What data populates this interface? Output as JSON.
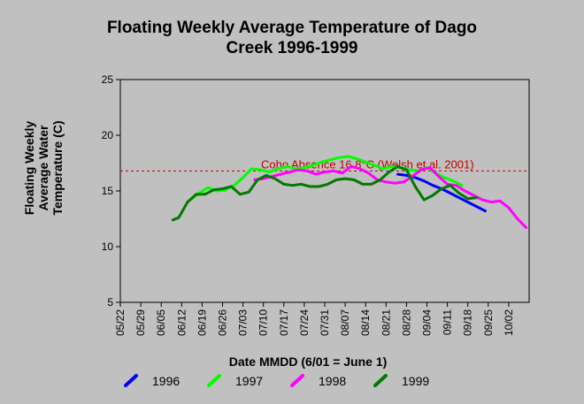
{
  "chart_data": {
    "type": "line",
    "title_lines": [
      "Floating Weekly Average Temperature of Dago",
      "Creek 1996-1999"
    ],
    "xlabel": "Date MMDD (6/01 = June 1)",
    "ylabel_lines": [
      "Floating Weekly",
      "Average Water",
      "Temperature (C)"
    ],
    "ylim": [
      5,
      25
    ],
    "yticks": [
      "5",
      "10",
      "15",
      "20",
      "25"
    ],
    "xlim": [
      "05/22",
      "10/09"
    ],
    "xtick_labels": [
      "05/22",
      "05/29",
      "06/05",
      "06/12",
      "06/19",
      "06/26",
      "07/03",
      "07/10",
      "07/17",
      "07/24",
      "07/31",
      "08/07",
      "08/14",
      "08/21",
      "08/28",
      "09/04",
      "09/11",
      "09/18",
      "09/25",
      "10/02"
    ],
    "grid": false,
    "legend_position": "bottom",
    "reference_line": {
      "value": 16.8,
      "label": "Coho Absence 16.8°C (Welsh et al. 2001)",
      "color": "#c00000"
    },
    "series": [
      {
        "name": "1996",
        "color": "#0000ff",
        "x": [
          "08/25",
          "08/28",
          "08/31",
          "09/03",
          "09/06",
          "09/09",
          "09/12",
          "09/15",
          "09/18",
          "09/21",
          "09/24"
        ],
        "values": [
          16.5,
          16.4,
          16.2,
          15.9,
          15.5,
          15.2,
          14.8,
          14.4,
          14.0,
          13.6,
          13.2
        ]
      },
      {
        "name": "1997",
        "color": "#00ff00",
        "x": [
          "06/15",
          "06/18",
          "06/21",
          "06/24",
          "06/27",
          "06/30",
          "07/03",
          "07/06",
          "07/09",
          "07/12",
          "07/15",
          "07/18",
          "07/21",
          "07/24",
          "07/27",
          "07/30",
          "08/02",
          "08/05",
          "08/08",
          "08/11",
          "08/14",
          "08/17",
          "08/20",
          "08/23",
          "08/26",
          "08/29",
          "09/01",
          "09/04",
          "09/07",
          "09/10",
          "09/13",
          "09/16"
        ],
        "values": [
          14.2,
          14.8,
          15.3,
          15.0,
          15.1,
          15.5,
          16.2,
          17.0,
          16.9,
          16.7,
          17.0,
          17.2,
          17.0,
          17.1,
          17.3,
          17.6,
          17.8,
          18.0,
          18.1,
          17.9,
          17.6,
          17.3,
          17.0,
          17.2,
          17.1,
          16.9,
          16.8,
          17.1,
          16.6,
          16.2,
          15.9,
          15.5
        ]
      },
      {
        "name": "1998",
        "color": "#ff00ff",
        "x": [
          "07/07",
          "07/10",
          "07/13",
          "07/16",
          "07/19",
          "07/22",
          "07/25",
          "07/28",
          "07/31",
          "08/03",
          "08/06",
          "08/09",
          "08/12",
          "08/15",
          "08/18",
          "08/21",
          "08/24",
          "08/27",
          "08/30",
          "09/02",
          "09/05",
          "09/08",
          "09/11",
          "09/14",
          "09/17",
          "09/20",
          "09/23",
          "09/26",
          "09/29",
          "10/02",
          "10/05",
          "10/08"
        ],
        "values": [
          16.0,
          16.1,
          16.3,
          16.5,
          16.7,
          16.9,
          16.8,
          16.5,
          16.7,
          16.8,
          16.6,
          17.2,
          17.0,
          16.6,
          16.0,
          15.8,
          15.7,
          15.8,
          16.3,
          16.9,
          17.1,
          16.3,
          15.6,
          15.5,
          15.0,
          14.6,
          14.2,
          14.0,
          14.1,
          13.5,
          12.5,
          11.7
        ]
      },
      {
        "name": "1999",
        "color": "#007a00",
        "x": [
          "06/09",
          "06/11",
          "06/14",
          "06/17",
          "06/20",
          "06/23",
          "06/26",
          "06/29",
          "07/02",
          "07/05",
          "07/08",
          "07/11",
          "07/14",
          "07/17",
          "07/20",
          "07/23",
          "07/26",
          "07/29",
          "08/01",
          "08/04",
          "08/07",
          "08/10",
          "08/13",
          "08/16",
          "08/19",
          "08/22",
          "08/25",
          "08/28",
          "08/31",
          "09/03",
          "09/06",
          "09/09",
          "09/12",
          "09/15",
          "09/18",
          "09/21"
        ],
        "values": [
          12.4,
          12.6,
          14.0,
          14.7,
          14.7,
          15.1,
          15.2,
          15.4,
          14.7,
          14.9,
          16.0,
          16.4,
          16.1,
          15.6,
          15.5,
          15.6,
          15.4,
          15.4,
          15.6,
          16.0,
          16.1,
          16.0,
          15.6,
          15.6,
          16.0,
          16.7,
          17.2,
          16.9,
          15.4,
          14.2,
          14.6,
          15.2,
          15.5,
          14.8,
          14.3,
          14.4
        ]
      }
    ]
  }
}
